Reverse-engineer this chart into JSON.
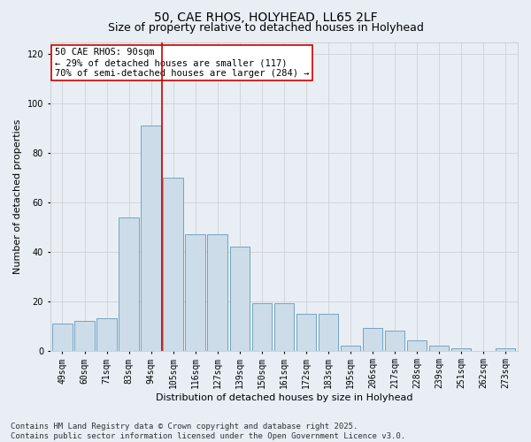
{
  "title_line1": "50, CAE RHOS, HOLYHEAD, LL65 2LF",
  "title_line2": "Size of property relative to detached houses in Holyhead",
  "xlabel": "Distribution of detached houses by size in Holyhead",
  "ylabel": "Number of detached properties",
  "categories": [
    "49sqm",
    "60sqm",
    "71sqm",
    "83sqm",
    "94sqm",
    "105sqm",
    "116sqm",
    "127sqm",
    "139sqm",
    "150sqm",
    "161sqm",
    "172sqm",
    "183sqm",
    "195sqm",
    "206sqm",
    "217sqm",
    "228sqm",
    "239sqm",
    "251sqm",
    "262sqm",
    "273sqm"
  ],
  "values": [
    11,
    12,
    13,
    54,
    91,
    70,
    47,
    47,
    42,
    19,
    19,
    15,
    15,
    2,
    9,
    8,
    4,
    2,
    1,
    0,
    1
  ],
  "bar_color": "#ccdce8",
  "bar_edge_color": "#6699bb",
  "bar_edge_width": 0.6,
  "grid_color": "#cccccc",
  "background_color": "#e8eef4",
  "vline_x_index": 4.5,
  "vline_color": "#cc0000",
  "annotation_line1": "50 CAE RHOS: 90sqm",
  "annotation_line2": "← 29% of detached houses are smaller (117)",
  "annotation_line3": "70% of semi-detached houses are larger (284) →",
  "annotation_box_color": "#cc0000",
  "annotation_box_fill": "#ffffff",
  "ylim": [
    0,
    125
  ],
  "yticks": [
    0,
    20,
    40,
    60,
    80,
    100,
    120
  ],
  "footer_text": "Contains HM Land Registry data © Crown copyright and database right 2025.\nContains public sector information licensed under the Open Government Licence v3.0.",
  "title_fontsize": 10,
  "subtitle_fontsize": 9,
  "axis_label_fontsize": 8,
  "tick_fontsize": 7,
  "annotation_fontsize": 7.5,
  "footer_fontsize": 6.5
}
